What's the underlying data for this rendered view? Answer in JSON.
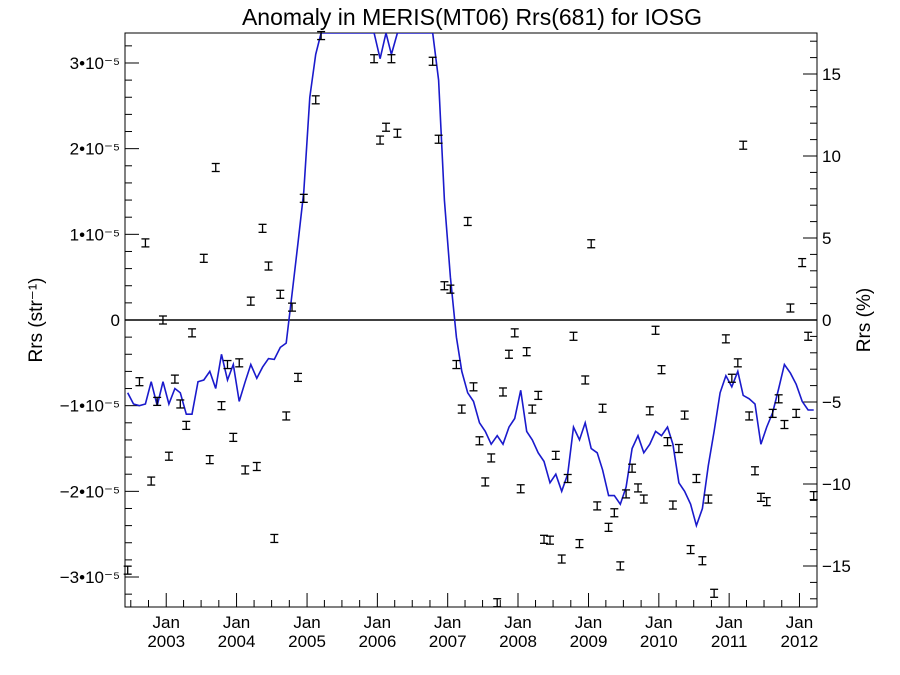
{
  "chart_data": {
    "type": "scatter",
    "title": "Anomaly in MERIS(MT06) Rrs(681) for IOSG",
    "ylabel_left": "Rrs (str⁻¹)",
    "ylabel_right": "Rrs (%)",
    "x_range": [
      "2002-06-01",
      "2012-04-01"
    ],
    "x_ticks": [
      {
        "month": "Jan",
        "year": "2003",
        "date": "2003-01-01"
      },
      {
        "month": "Jan",
        "year": "2004",
        "date": "2004-01-01"
      },
      {
        "month": "Jan",
        "year": "2005",
        "date": "2005-01-01"
      },
      {
        "month": "Jan",
        "year": "2006",
        "date": "2006-01-01"
      },
      {
        "month": "Jan",
        "year": "2007",
        "date": "2007-01-01"
      },
      {
        "month": "Jan",
        "year": "2008",
        "date": "2008-01-01"
      },
      {
        "month": "Jan",
        "year": "2009",
        "date": "2009-01-01"
      },
      {
        "month": "Jan",
        "year": "2010",
        "date": "2010-01-01"
      },
      {
        "month": "Jan",
        "year": "2011",
        "date": "2011-01-01"
      },
      {
        "month": "Jan",
        "year": "2012",
        "date": "2012-01-01"
      }
    ],
    "y_left_range": [
      -3.35e-05,
      3.35e-05
    ],
    "y_left_ticks": [
      {
        "value": 3e-05,
        "label": "3•10⁻⁵"
      },
      {
        "value": 2e-05,
        "label": "2•10⁻⁵"
      },
      {
        "value": 1e-05,
        "label": "1•10⁻⁵"
      },
      {
        "value": 0,
        "label": "0"
      },
      {
        "value": -1e-05,
        "label": "−1•10⁻⁵"
      },
      {
        "value": -2e-05,
        "label": "−2•10⁻⁵"
      },
      {
        "value": -3e-05,
        "label": "−3•10⁻⁵"
      }
    ],
    "y_right_range": [
      -17.5,
      17.5
    ],
    "y_right_ticks": [
      {
        "value": 15,
        "label": "15"
      },
      {
        "value": 10,
        "label": "10"
      },
      {
        "value": 5,
        "label": "5"
      },
      {
        "value": 0,
        "label": "0"
      },
      {
        "value": -5,
        "label": "−5"
      },
      {
        "value": -10,
        "label": "−10"
      },
      {
        "value": -15,
        "label": "−15"
      }
    ],
    "zero_line": true,
    "grid": false,
    "legend": "none",
    "series": [
      {
        "style": "error-bar points",
        "color": "#000000",
        "y_axis": "left",
        "points": [
          [
            "2002-06-15",
            -2.92e-05
          ],
          [
            "2002-08-15",
            -7.2e-06
          ],
          [
            "2002-09-15",
            9e-06
          ],
          [
            "2002-10-15",
            -1.88e-05
          ],
          [
            "2002-11-15",
            -9.5e-06
          ],
          [
            "2002-12-15",
            0.0
          ],
          [
            "2003-01-15",
            -1.59e-05
          ],
          [
            "2003-02-15",
            -6.9e-06
          ],
          [
            "2003-03-15",
            -9.8e-06
          ],
          [
            "2003-04-15",
            -1.23e-05
          ],
          [
            "2003-05-15",
            -1.5e-06
          ],
          [
            "2003-07-15",
            7.2e-06
          ],
          [
            "2003-08-15",
            -1.63e-05
          ],
          [
            "2003-09-15",
            1.78e-05
          ],
          [
            "2003-10-15",
            -1e-05
          ],
          [
            "2003-11-15",
            -5.2e-06
          ],
          [
            "2003-12-15",
            -1.37e-05
          ],
          [
            "2004-01-15",
            -5e-06
          ],
          [
            "2004-02-15",
            -1.75e-05
          ],
          [
            "2004-03-15",
            2.2e-06
          ],
          [
            "2004-04-15",
            -1.71e-05
          ],
          [
            "2004-05-15",
            1.07e-05
          ],
          [
            "2004-06-15",
            6.3e-06
          ],
          [
            "2004-07-15",
            -2.55e-05
          ],
          [
            "2004-08-15",
            3e-06
          ],
          [
            "2004-09-15",
            -1.12e-05
          ],
          [
            "2004-10-15",
            1.5e-06
          ],
          [
            "2004-11-15",
            -6.7e-06
          ],
          [
            "2004-12-15",
            1.42e-05
          ],
          [
            "2005-02-15",
            2.57e-05
          ],
          [
            "2005-03-15",
            3.32e-05
          ],
          [
            "2005-12-15",
            3.05e-05
          ],
          [
            "2006-01-15",
            2.1e-05
          ],
          [
            "2006-02-15",
            2.25e-05
          ],
          [
            "2006-03-15",
            3.05e-05
          ],
          [
            "2006-04-15",
            2.18e-05
          ],
          [
            "2006-10-15",
            3.02e-05
          ],
          [
            "2006-11-15",
            2.11e-05
          ],
          [
            "2006-12-15",
            4e-06
          ],
          [
            "2007-01-15",
            3.6e-06
          ],
          [
            "2007-02-15",
            -5.2e-06
          ],
          [
            "2007-03-15",
            -1.04e-05
          ],
          [
            "2007-04-15",
            1.15e-05
          ],
          [
            "2007-05-15",
            -7.8e-06
          ],
          [
            "2007-06-15",
            -1.41e-05
          ],
          [
            "2007-07-15",
            -1.89e-05
          ],
          [
            "2007-08-15",
            -1.61e-05
          ],
          [
            "2007-09-15",
            -3.3e-05
          ],
          [
            "2007-10-15",
            -8.4e-06
          ],
          [
            "2007-11-15",
            -4e-06
          ],
          [
            "2007-12-15",
            -1.5e-06
          ],
          [
            "2008-01-15",
            -1.97e-05
          ],
          [
            "2008-02-15",
            -3.7e-06
          ],
          [
            "2008-03-15",
            -1.04e-05
          ],
          [
            "2008-04-15",
            -8.8e-06
          ],
          [
            "2008-05-15",
            -2.56e-05
          ],
          [
            "2008-06-15",
            -2.57e-05
          ],
          [
            "2008-07-15",
            -1.58e-05
          ],
          [
            "2008-08-15",
            -2.79e-05
          ],
          [
            "2008-09-15",
            -1.85e-05
          ],
          [
            "2008-10-15",
            -1.9e-06
          ],
          [
            "2008-11-15",
            -2.61e-05
          ],
          [
            "2008-12-15",
            -7e-06
          ],
          [
            "2009-01-15",
            8.9e-06
          ],
          [
            "2009-02-15",
            -2.17e-05
          ],
          [
            "2009-03-15",
            -1.03e-05
          ],
          [
            "2009-04-15",
            -2.42e-05
          ],
          [
            "2009-05-15",
            -2.25e-05
          ],
          [
            "2009-06-15",
            -2.87e-05
          ],
          [
            "2009-07-15",
            -2.03e-05
          ],
          [
            "2009-08-15",
            -1.73e-05
          ],
          [
            "2009-09-15",
            -1.96e-05
          ],
          [
            "2009-10-15",
            -2.09e-05
          ],
          [
            "2009-11-15",
            -1.06e-05
          ],
          [
            "2009-12-15",
            -1.2e-06
          ],
          [
            "2010-01-15",
            -5.8e-06
          ],
          [
            "2010-02-15",
            -1.42e-05
          ],
          [
            "2010-03-15",
            -2.16e-05
          ],
          [
            "2010-04-15",
            -1.5e-05
          ],
          [
            "2010-05-15",
            -1.11e-05
          ],
          [
            "2010-06-15",
            -2.68e-05
          ],
          [
            "2010-07-15",
            -1.85e-05
          ],
          [
            "2010-08-15",
            -2.81e-05
          ],
          [
            "2010-09-15",
            -2.09e-05
          ],
          [
            "2010-10-15",
            -3.19e-05
          ],
          [
            "2010-12-15",
            -2.2e-06
          ],
          [
            "2011-01-15",
            -6.8e-06
          ],
          [
            "2011-02-15",
            -5e-06
          ],
          [
            "2011-03-15",
            2.04e-05
          ],
          [
            "2011-04-15",
            -1.12e-05
          ],
          [
            "2011-05-15",
            -1.76e-05
          ],
          [
            "2011-06-15",
            -2.07e-05
          ],
          [
            "2011-07-15",
            -2.12e-05
          ],
          [
            "2011-08-15",
            -1.09e-05
          ],
          [
            "2011-09-15",
            -9.2e-06
          ],
          [
            "2011-10-15",
            -1.22e-05
          ],
          [
            "2011-11-15",
            1.4e-06
          ],
          [
            "2011-12-15",
            -1.09e-05
          ],
          [
            "2012-01-15",
            6.7e-06
          ],
          [
            "2012-02-15",
            -1.9e-06
          ],
          [
            "2012-03-15",
            -2.05e-05
          ]
        ]
      },
      {
        "style": "line",
        "color": "#1a1acc",
        "y_axis": "left",
        "points": [
          [
            "2002-06-15",
            -8.5e-06
          ],
          [
            "2002-07-15",
            -9.8e-06
          ],
          [
            "2002-08-15",
            -1e-05
          ],
          [
            "2002-09-15",
            -9.8e-06
          ],
          [
            "2002-10-15",
            -7.2e-06
          ],
          [
            "2002-11-15",
            -1e-05
          ],
          [
            "2002-12-15",
            -7.2e-06
          ],
          [
            "2003-01-15",
            -9.8e-06
          ],
          [
            "2003-02-15",
            -8e-06
          ],
          [
            "2003-03-15",
            -8.5e-06
          ],
          [
            "2003-04-15",
            -1.1e-05
          ],
          [
            "2003-05-15",
            -1.1e-05
          ],
          [
            "2003-06-15",
            -7.2e-06
          ],
          [
            "2003-07-15",
            -7e-06
          ],
          [
            "2003-08-15",
            -6e-06
          ],
          [
            "2003-09-15",
            -8e-06
          ],
          [
            "2003-10-15",
            -4e-06
          ],
          [
            "2003-11-15",
            -7e-06
          ],
          [
            "2003-12-15",
            -5.2e-06
          ],
          [
            "2004-01-15",
            -9.5e-06
          ],
          [
            "2004-02-15",
            -7.2e-06
          ],
          [
            "2004-03-15",
            -5.2e-06
          ],
          [
            "2004-04-15",
            -6.8e-06
          ],
          [
            "2004-05-15",
            -5.5e-06
          ],
          [
            "2004-06-15",
            -4.5e-06
          ],
          [
            "2004-07-15",
            -4.6e-06
          ],
          [
            "2004-08-15",
            -3.2e-06
          ],
          [
            "2004-09-15",
            -2.7e-06
          ],
          [
            "2004-10-15",
            3e-06
          ],
          [
            "2004-11-15",
            9e-06
          ],
          [
            "2004-12-15",
            1.5e-05
          ],
          [
            "2005-01-15",
            2.6e-05
          ],
          [
            "2005-02-15",
            3.1e-05
          ],
          [
            "2005-03-15",
            3.35e-05
          ],
          [
            "2005-12-15",
            3.35e-05
          ],
          [
            "2006-01-15",
            3.05e-05
          ],
          [
            "2006-02-15",
            3.35e-05
          ],
          [
            "2006-03-15",
            3.1e-05
          ],
          [
            "2006-04-15",
            3.35e-05
          ],
          [
            "2006-10-15",
            3.35e-05
          ],
          [
            "2006-11-15",
            2.8e-05
          ],
          [
            "2006-12-15",
            1.4e-05
          ],
          [
            "2007-01-15",
            5e-06
          ],
          [
            "2007-02-15",
            -2e-06
          ],
          [
            "2007-03-15",
            -6e-06
          ],
          [
            "2007-04-15",
            -8.5e-06
          ],
          [
            "2007-05-15",
            -9.5e-06
          ],
          [
            "2007-06-15",
            -1.2e-05
          ],
          [
            "2007-07-15",
            -1.3e-05
          ],
          [
            "2007-08-15",
            -1.45e-05
          ],
          [
            "2007-09-15",
            -1.35e-05
          ],
          [
            "2007-10-15",
            -1.45e-05
          ],
          [
            "2007-11-15",
            -1.25e-05
          ],
          [
            "2007-12-15",
            -1.15e-05
          ],
          [
            "2008-01-15",
            -8.2e-06
          ],
          [
            "2008-02-15",
            -1.3e-05
          ],
          [
            "2008-03-15",
            -1.4e-05
          ],
          [
            "2008-04-15",
            -1.55e-05
          ],
          [
            "2008-05-15",
            -1.65e-05
          ],
          [
            "2008-06-15",
            -1.9e-05
          ],
          [
            "2008-07-15",
            -1.8e-05
          ],
          [
            "2008-08-15",
            -2e-05
          ],
          [
            "2008-09-15",
            -1.8e-05
          ],
          [
            "2008-10-15",
            -1.25e-05
          ],
          [
            "2008-11-15",
            -1.4e-05
          ],
          [
            "2008-12-15",
            -1.2e-05
          ],
          [
            "2009-01-15",
            -1.5e-05
          ],
          [
            "2009-02-15",
            -1.55e-05
          ],
          [
            "2009-03-15",
            -1.75e-05
          ],
          [
            "2009-04-15",
            -2.05e-05
          ],
          [
            "2009-05-15",
            -2.05e-05
          ],
          [
            "2009-06-15",
            -2.15e-05
          ],
          [
            "2009-07-15",
            -1.95e-05
          ],
          [
            "2009-08-15",
            -1.5e-05
          ],
          [
            "2009-09-15",
            -1.35e-05
          ],
          [
            "2009-10-15",
            -1.55e-05
          ],
          [
            "2009-11-15",
            -1.45e-05
          ],
          [
            "2009-12-15",
            -1.3e-05
          ],
          [
            "2010-01-15",
            -1.35e-05
          ],
          [
            "2010-02-15",
            -1.25e-05
          ],
          [
            "2010-03-15",
            -1.45e-05
          ],
          [
            "2010-04-15",
            -1.9e-05
          ],
          [
            "2010-05-15",
            -2e-05
          ],
          [
            "2010-06-15",
            -2.15e-05
          ],
          [
            "2010-07-15",
            -2.4e-05
          ],
          [
            "2010-08-15",
            -2.2e-05
          ],
          [
            "2010-09-15",
            -1.7e-05
          ],
          [
            "2010-10-15",
            -1.3e-05
          ],
          [
            "2010-11-15",
            -8.5e-06
          ],
          [
            "2010-12-15",
            -6.5e-06
          ],
          [
            "2011-01-15",
            -7.8e-06
          ],
          [
            "2011-02-15",
            -6e-06
          ],
          [
            "2011-03-15",
            -8.8e-06
          ],
          [
            "2011-04-15",
            -9.2e-06
          ],
          [
            "2011-05-15",
            -9.8e-06
          ],
          [
            "2011-06-15",
            -1.45e-05
          ],
          [
            "2011-07-15",
            -1.25e-05
          ],
          [
            "2011-08-15",
            -1.08e-05
          ],
          [
            "2011-09-15",
            -8e-06
          ],
          [
            "2011-10-15",
            -5.2e-06
          ],
          [
            "2011-11-15",
            -6.2e-06
          ],
          [
            "2011-12-15",
            -7.5e-06
          ],
          [
            "2012-01-15",
            -9.5e-06
          ],
          [
            "2012-02-15",
            -1.05e-05
          ],
          [
            "2012-03-15",
            -1.05e-05
          ]
        ]
      }
    ]
  }
}
